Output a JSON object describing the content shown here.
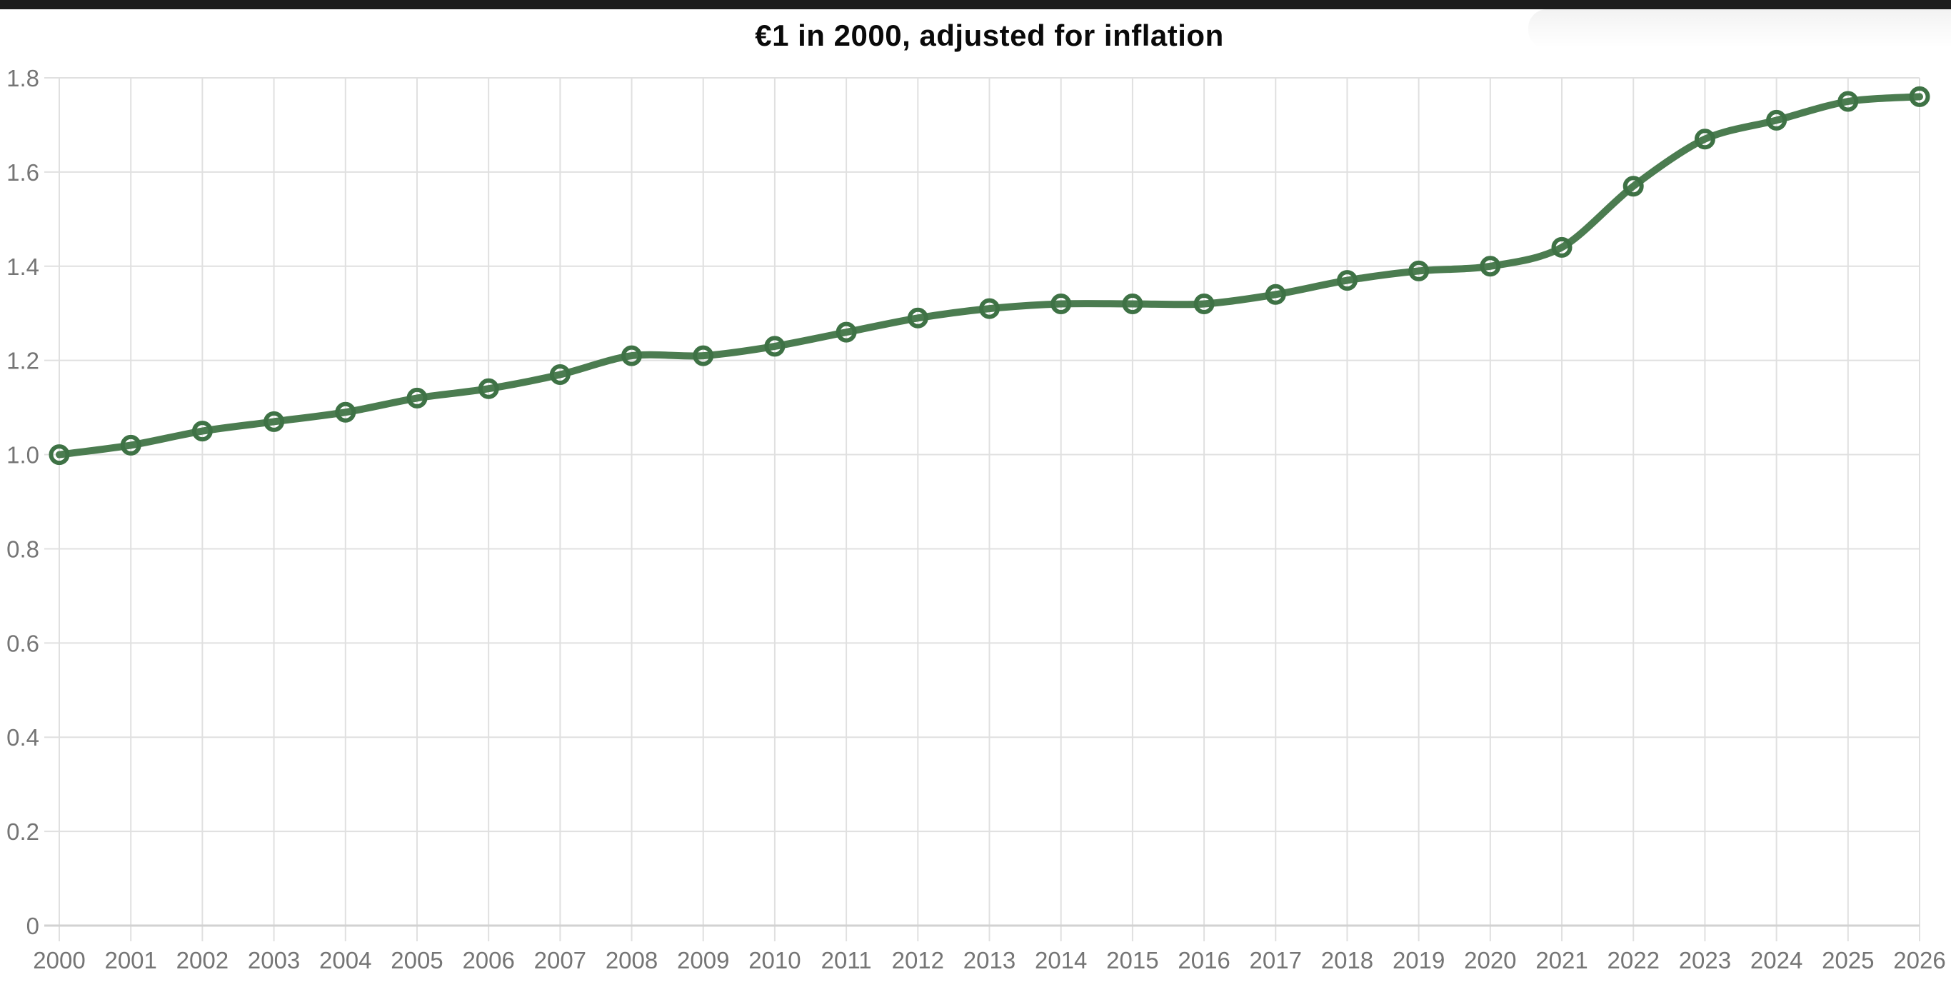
{
  "window": {
    "top_bar_color": "#1c1c1c",
    "background": "#ffffff"
  },
  "chart_data": {
    "type": "line",
    "title": "€1 in 2000, adjusted for inflation",
    "x": [
      2000,
      2001,
      2002,
      2003,
      2004,
      2005,
      2006,
      2007,
      2008,
      2009,
      2010,
      2011,
      2012,
      2013,
      2014,
      2015,
      2016,
      2017,
      2018,
      2019,
      2020,
      2021,
      2022,
      2023,
      2024,
      2025,
      2026
    ],
    "xtick_labels": [
      "2000",
      "2001",
      "2002",
      "2003",
      "2004",
      "2005",
      "2006",
      "2007",
      "2008",
      "2009",
      "2010",
      "2011",
      "2012",
      "2013",
      "2014",
      "2015",
      "2016",
      "2017",
      "2018",
      "2019",
      "2020",
      "2021",
      "2022",
      "2023",
      "2024",
      "2025",
      "2026"
    ],
    "yticks": [
      0,
      0.2,
      0.4,
      0.6,
      0.8,
      1.0,
      1.2,
      1.4,
      1.6,
      1.8
    ],
    "ytick_labels": [
      "0",
      "0.2",
      "0.4",
      "0.6",
      "0.8",
      "1.0",
      "1.2",
      "1.4",
      "1.6",
      "1.8"
    ],
    "ylim": [
      0,
      1.8
    ],
    "grid": true,
    "legend": "none",
    "series": [
      {
        "name": "€1 in 2000, adjusted for inflation",
        "values": [
          1.0,
          1.02,
          1.05,
          1.07,
          1.09,
          1.12,
          1.14,
          1.17,
          1.21,
          1.21,
          1.23,
          1.26,
          1.29,
          1.31,
          1.32,
          1.32,
          1.32,
          1.34,
          1.37,
          1.39,
          1.4,
          1.44,
          1.57,
          1.67,
          1.71,
          1.75,
          1.76
        ],
        "line_color": "#4b7c50",
        "marker": "open-circle",
        "marker_ring_color": "#3e7245"
      }
    ],
    "colors": {
      "gridline": "#e0e0e0",
      "zero_line": "#d2d2d2",
      "tick_label": "#757575",
      "title": "#0a0a0a"
    }
  }
}
